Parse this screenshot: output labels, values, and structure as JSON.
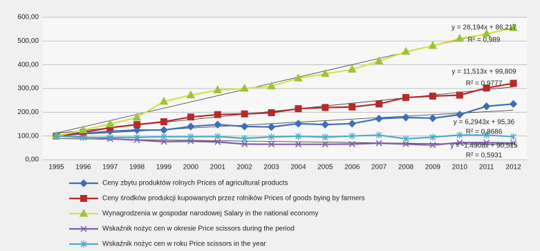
{
  "chart_data": {
    "type": "line",
    "categories": [
      "1995",
      "1996",
      "1997",
      "1998",
      "1999",
      "2000",
      "2001",
      "2002",
      "2003",
      "2004",
      "2005",
      "2006",
      "2007",
      "2008",
      "2009",
      "2010",
      "2011",
      "2012"
    ],
    "series": [
      {
        "name": "Ceny zbytu produktów rolnych   Prices of agricultural products",
        "color": "#3d6fb8",
        "marker": "diamond",
        "values": [
          100,
          110,
          120,
          125,
          125,
          140,
          148,
          140,
          138,
          152,
          148,
          152,
          173,
          178,
          175,
          190,
          225,
          235
        ]
      },
      {
        "name": "Ceny środków produkcji kupowanych przez rolników Prices of goods bying by farmers",
        "color": "#b52a2a",
        "marker": "square",
        "values": [
          100,
          115,
          135,
          148,
          160,
          180,
          190,
          193,
          198,
          215,
          220,
          222,
          235,
          262,
          268,
          272,
          302,
          322
        ]
      },
      {
        "name": "Wynagrodzenia w gospodar narodowej Salary in the national economy",
        "color": "#9cc43a",
        "line_color": "#d8e04a",
        "marker": "triangle",
        "values": [
          100,
          125,
          150,
          178,
          245,
          272,
          293,
          300,
          310,
          343,
          362,
          380,
          415,
          455,
          480,
          510,
          530,
          555
        ]
      },
      {
        "name": "Wskaźnik nożyc cen w okresie Price scissors during the period",
        "color": "#7e5ea8",
        "marker": "x",
        "values": [
          100,
          95,
          88,
          83,
          76,
          78,
          75,
          66,
          65,
          65,
          65,
          66,
          70,
          66,
          62,
          72,
          72,
          70
        ]
      },
      {
        "name": "Wskaźnik nożyc cen w roku Price scissors in the year",
        "color": "#4bacc6",
        "marker": "star",
        "values": [
          100,
          93,
          94,
          94,
          97,
          97,
          98,
          90,
          96,
          99,
          95,
          100,
          104,
          88,
          95,
          104,
          104,
          97
        ]
      }
    ],
    "trendlines": [
      {
        "slope": 26.194,
        "intercept": 86.217,
        "equation": "y = 26,194x + 86,217",
        "r_squared": "R² = 0,989"
      },
      {
        "slope": 11.513,
        "intercept": 99.809,
        "equation": "y = 11,513x + 99,809",
        "r_squared": "R² = 0,9777"
      },
      {
        "slope": 6.2943,
        "intercept": 95.36,
        "equation": "y = 6,2943x + 95,36",
        "r_squared": "R² = 0,8686"
      },
      {
        "slope": -1.4908,
        "intercept": 90.515,
        "equation": "y = -1,4908x + 90,515",
        "r_squared": "R² = 0,5931"
      }
    ],
    "ylim": [
      0,
      600
    ],
    "yticks": [
      {
        "value": 0,
        "label": "0,00"
      },
      {
        "value": 100,
        "label": "100,00"
      },
      {
        "value": 200,
        "label": "200,00"
      },
      {
        "value": 300,
        "label": "300,00"
      },
      {
        "value": 400,
        "label": "400,00"
      },
      {
        "value": 500,
        "label": "500,00"
      },
      {
        "value": 600,
        "label": "600,00"
      }
    ],
    "grid": true
  }
}
